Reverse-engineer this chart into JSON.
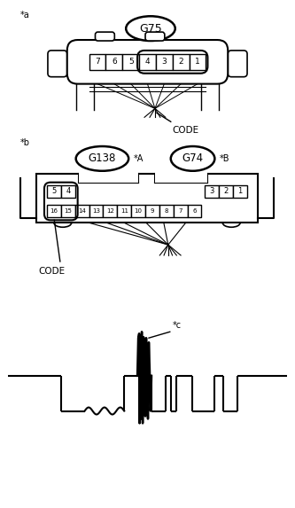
{
  "bg_color": "#ffffff",
  "line_color": "#000000",
  "fig_width": 3.33,
  "fig_height": 5.73,
  "dpi": 100,
  "label_a": "*a",
  "label_b": "*b",
  "label_c": "*c",
  "connector_a_label": "G75",
  "connector_b1_label": "G138",
  "connector_b2_label": "G74",
  "suffix_A": "*A",
  "suffix_B": "*B",
  "code_label": "CODE",
  "pins_a": [
    "7",
    "6",
    "5",
    "4",
    "3",
    "2",
    "1"
  ],
  "font_size_label": 7,
  "font_size_pin": 6,
  "font_size_code": 7,
  "font_size_connector": 8
}
